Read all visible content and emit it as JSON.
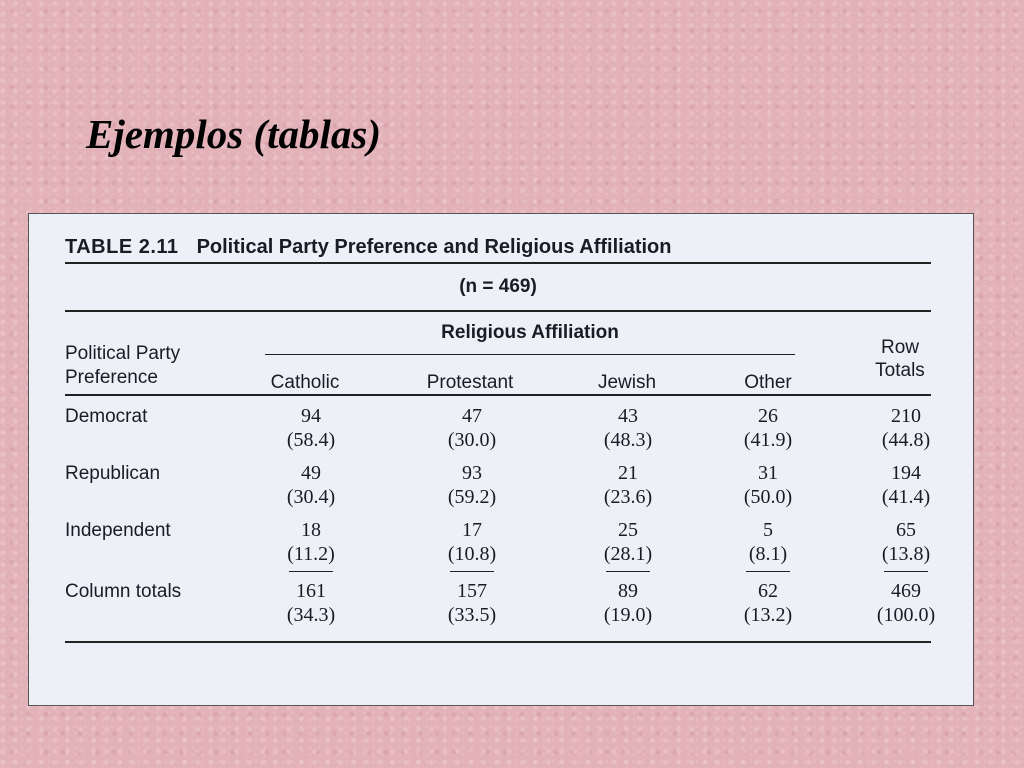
{
  "slide": {
    "title": "Ejemplos (tablas)"
  },
  "table": {
    "number": "TABLE 2.11",
    "title": "Political Party Preference and Religious Affiliation",
    "n_label": "(n = 469)",
    "spanner_label": "Religious Affiliation",
    "stub_header_line1": "Political Party",
    "stub_header_line2": "Preference",
    "columns": [
      "Catholic",
      "Protestant",
      "Jewish",
      "Other"
    ],
    "row_totals_line1": "Row",
    "row_totals_line2": "Totals",
    "rows": [
      {
        "label": "Democrat",
        "cells": [
          [
            "94",
            "(58.4)"
          ],
          [
            "47",
            "(30.0)"
          ],
          [
            "43",
            "(48.3)"
          ],
          [
            "26",
            "(41.9)"
          ],
          [
            "210",
            "(44.8)"
          ]
        ]
      },
      {
        "label": "Republican",
        "cells": [
          [
            "49",
            "(30.4)"
          ],
          [
            "93",
            "(59.2)"
          ],
          [
            "21",
            "(23.6)"
          ],
          [
            "31",
            "(50.0)"
          ],
          [
            "194",
            "(41.4)"
          ]
        ]
      },
      {
        "label": "Independent",
        "cells": [
          [
            "18",
            "(11.2)"
          ],
          [
            "17",
            "(10.8)"
          ],
          [
            "25",
            "(28.1)"
          ],
          [
            "5",
            "(8.1)"
          ],
          [
            "65",
            "(13.8)"
          ]
        ]
      },
      {
        "label": "Column totals",
        "cells": [
          [
            "161",
            "(34.3)"
          ],
          [
            "157",
            "(33.5)"
          ],
          [
            "89",
            "(19.0)"
          ],
          [
            "62",
            "(13.2)"
          ],
          [
            "469",
            "(100.0)"
          ]
        ]
      }
    ]
  }
}
